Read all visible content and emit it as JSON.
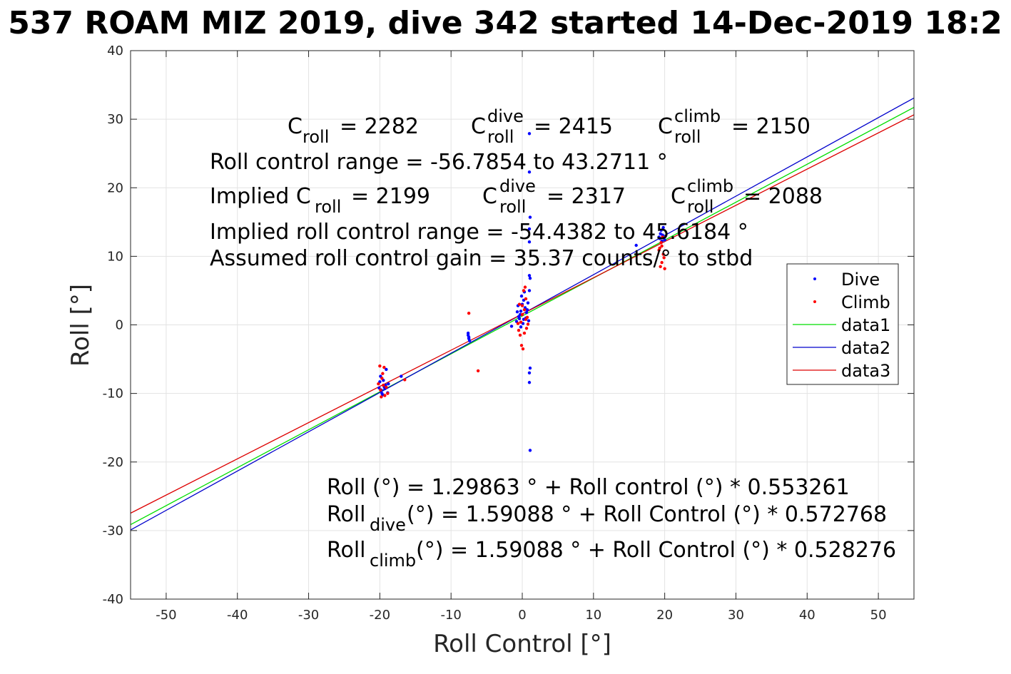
{
  "chart_data": {
    "type": "scatter",
    "title": "537 ROAM MIZ 2019, dive 342 started 14-Dec-2019 18:2",
    "xlabel": "Roll Control [°]",
    "ylabel": "Roll [°]",
    "xlim": [
      -55,
      55
    ],
    "ylim": [
      -40,
      40
    ],
    "xticks": [
      -50,
      -40,
      -30,
      -20,
      -10,
      0,
      10,
      20,
      30,
      40,
      50
    ],
    "yticks": [
      -40,
      -30,
      -20,
      -10,
      0,
      10,
      20,
      30,
      40
    ],
    "grid": true,
    "legend_position": "right",
    "colors": {
      "dive": "#0000ff",
      "climb": "#ff0000",
      "data1": "#00dd00",
      "data2": "#0000cc",
      "data3": "#dd0000"
    },
    "series": [
      {
        "name": "Dive",
        "kind": "points",
        "color": "#0000ff",
        "points": [
          [
            -20,
            -8.3
          ],
          [
            -19.8,
            -9.5
          ],
          [
            -19.6,
            -10.2
          ],
          [
            -19.4,
            -9.0
          ],
          [
            -19.9,
            -7.5
          ],
          [
            -19.2,
            -8.8
          ],
          [
            -18.9,
            -9.9
          ],
          [
            -19.5,
            -8.1
          ],
          [
            -19.7,
            -10.0
          ],
          [
            -19.3,
            -9.3
          ],
          [
            -18.8,
            -8.6
          ],
          [
            -19.1,
            -6.5
          ],
          [
            -20.1,
            -9.2
          ],
          [
            -17,
            -7.5
          ],
          [
            -7.6,
            -1.2
          ],
          [
            -7.5,
            -1.8
          ],
          [
            -7.4,
            -2.3
          ],
          [
            -7.6,
            -1.5
          ],
          [
            -7.5,
            -2.0
          ],
          [
            -1.5,
            -0.2
          ],
          [
            -0.8,
            0.5
          ],
          [
            -0.5,
            1.2
          ],
          [
            -0.2,
            2.0
          ],
          [
            0.0,
            3.0
          ],
          [
            -0.3,
            1.5
          ],
          [
            0.2,
            0.8
          ],
          [
            0.4,
            2.5
          ],
          [
            0.6,
            1.8
          ],
          [
            0.8,
            3.2
          ],
          [
            -0.6,
            2.8
          ],
          [
            -0.1,
            4.2
          ],
          [
            0.3,
            4.8
          ],
          [
            0.1,
            0.2
          ],
          [
            -0.4,
            0.9
          ],
          [
            0.5,
            1.0
          ],
          [
            0.7,
            2.2
          ],
          [
            0.9,
            0.6
          ],
          [
            -0.7,
            1.9
          ],
          [
            0.2,
            3.6
          ],
          [
            -0.2,
            -0.3
          ],
          [
            1.0,
            27.9
          ],
          [
            1.0,
            22.3
          ],
          [
            1.1,
            15.7
          ],
          [
            1.0,
            14.0
          ],
          [
            1.0,
            12.1
          ],
          [
            1.0,
            7.2
          ],
          [
            1.1,
            6.8
          ],
          [
            1.0,
            5.0
          ],
          [
            1.1,
            -6.3
          ],
          [
            1.0,
            -7.0
          ],
          [
            1.0,
            -8.4
          ],
          [
            1.1,
            -18.3
          ],
          [
            16,
            11.6
          ],
          [
            19.2,
            12.8
          ],
          [
            19.4,
            13.3
          ],
          [
            19.6,
            12.2
          ],
          [
            19.8,
            14.2
          ],
          [
            19.5,
            13.8
          ],
          [
            19.3,
            12.6
          ],
          [
            19.7,
            13.1
          ],
          [
            20,
            12.4
          ]
        ]
      },
      {
        "name": "Climb",
        "kind": "points",
        "color": "#ff0000",
        "points": [
          [
            -20,
            -6.0
          ],
          [
            -19.7,
            -7.8
          ],
          [
            -19.5,
            -8.8
          ],
          [
            -19.9,
            -9.5
          ],
          [
            -19.3,
            -10.3
          ],
          [
            -19.6,
            -7.1
          ],
          [
            -20.2,
            -8.6
          ],
          [
            -19.1,
            -9.1
          ],
          [
            -18.9,
            -10.0
          ],
          [
            -19.8,
            -10.5
          ],
          [
            -19.4,
            -6.2
          ],
          [
            -16.5,
            -8.0
          ],
          [
            -7.5,
            1.7
          ],
          [
            -6.2,
            -6.7
          ],
          [
            -0.5,
            -0.8
          ],
          [
            -0.2,
            0.4
          ],
          [
            0.0,
            1.5
          ],
          [
            0.3,
            2.2
          ],
          [
            0.5,
            0.8
          ],
          [
            -0.4,
            3.0
          ],
          [
            0.2,
            5.0
          ],
          [
            0.4,
            5.5
          ],
          [
            -0.1,
            -3.0
          ],
          [
            0.1,
            -3.5
          ],
          [
            0.6,
            -0.5
          ],
          [
            0.7,
            1.1
          ],
          [
            -0.6,
            0.2
          ],
          [
            0.3,
            -1.2
          ],
          [
            0.0,
            2.8
          ],
          [
            0.5,
            3.8
          ],
          [
            -0.3,
            -1.5
          ],
          [
            0.8,
            0.1
          ],
          [
            19.4,
            8.5
          ],
          [
            19.6,
            9.1
          ],
          [
            19.8,
            10.3
          ],
          [
            19.3,
            11.2
          ],
          [
            19.5,
            12.0
          ],
          [
            19.7,
            12.8
          ],
          [
            19.9,
            9.8
          ],
          [
            19.2,
            10.9
          ],
          [
            19.6,
            11.5
          ],
          [
            20,
            8.2
          ]
        ]
      },
      {
        "name": "data1",
        "kind": "line",
        "color": "#00dd00",
        "slope": 0.553261,
        "intercept": 1.29863,
        "x": [
          -55,
          55
        ]
      },
      {
        "name": "data2",
        "kind": "line",
        "color": "#0000cc",
        "slope": 0.572768,
        "intercept": 1.59088,
        "x": [
          -55,
          55
        ]
      },
      {
        "name": "data3",
        "kind": "line",
        "color": "#dd0000",
        "slope": 0.528276,
        "intercept": 1.59088,
        "x": [
          -55,
          55
        ]
      }
    ],
    "annotations": {
      "c_roll": {
        "base": "C",
        "sub": "roll",
        "value": "= 2282"
      },
      "c_roll_dive": {
        "base": "C",
        "sup": "dive",
        "sub": "roll",
        "value": "= 2415"
      },
      "c_roll_climb": {
        "base": "C",
        "sup": "climb",
        "sub": "roll",
        "value": "= 2150"
      },
      "range": "Roll control range = -56.7854 to 43.2711 °",
      "implied_prefix": "Implied C",
      "implied_sub": "roll",
      "implied_value": "= 2199",
      "implied_dive": {
        "base": "C",
        "sup": "dive",
        "sub": "roll",
        "value": "= 2317"
      },
      "implied_climb": {
        "base": "C",
        "sup": "climb",
        "sub": "roll",
        "value": "= 2088"
      },
      "implied_range": "Implied roll control range = -54.4382 to 45.6184 °",
      "gain": "Assumed roll control gain = 35.37 counts/° to stbd",
      "eq1": "Roll (°) = 1.29863 ° + Roll control (°) * 0.553261",
      "eq2_base": "Roll",
      "eq2_sub": "dive",
      "eq2_rest": " (°) = 1.59088 ° + Roll Control (°) * 0.572768",
      "eq3_base": "Roll",
      "eq3_sub": "climb",
      "eq3_rest": " (°) = 1.59088 ° + Roll Control (°) * 0.528276"
    }
  }
}
